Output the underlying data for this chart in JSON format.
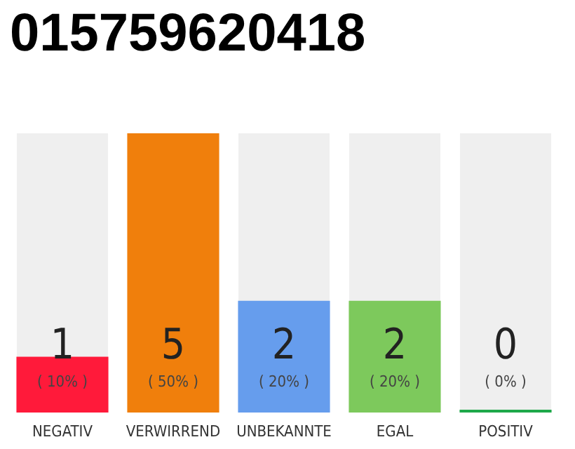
{
  "chart_data": {
    "type": "bar",
    "title": "015759620418",
    "categories": [
      "NEGATIV",
      "VERWIRREND",
      "UNBEKANNTE",
      "EGAL",
      "POSITIV"
    ],
    "values": [
      1,
      5,
      2,
      2,
      0
    ],
    "colors": [
      "#ff1a3a",
      "#f07f0c",
      "#669ded",
      "#7dc95c",
      "#1ea84a"
    ],
    "value_labels": [
      "1\n( 10% )",
      "5\n( 50% )",
      "2\n( 20% )",
      "2\n( 20% )",
      "0\n( 0% )"
    ],
    "ylim": [
      0,
      5
    ],
    "tick_labels": "x"
  }
}
